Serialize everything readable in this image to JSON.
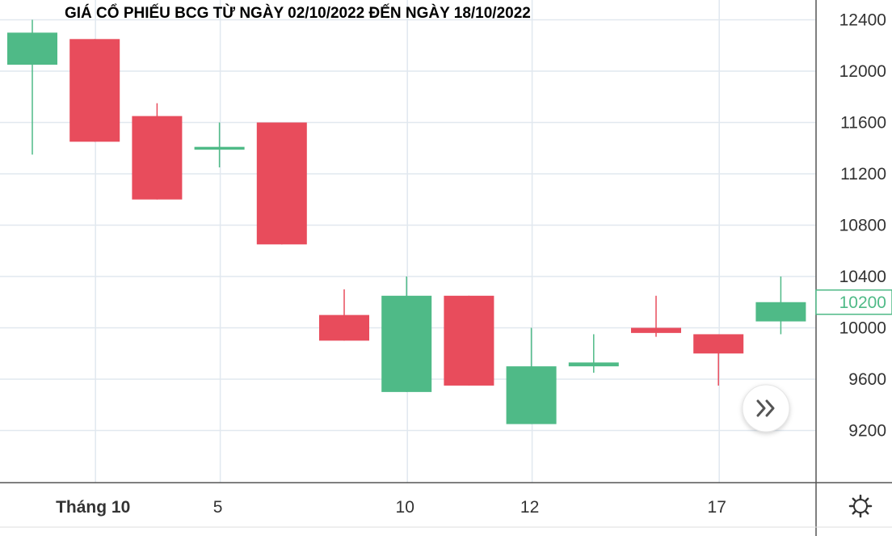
{
  "chart_data": {
    "type": "candlestick",
    "title": "GIÁ CỔ PHIẾU BCG TỪ NGÀY 02/10/2022 ĐẾN NGÀY 18/10/2022",
    "xlabel": "",
    "ylabel": "",
    "ylim": [
      8800,
      12500
    ],
    "y_ticks": [
      12400,
      12000,
      11600,
      11200,
      10800,
      10400,
      10000,
      9600,
      9200
    ],
    "x_tick_labels": [
      {
        "label": "Tháng 10",
        "index": 1,
        "bold": true
      },
      {
        "label": "5",
        "index": 3,
        "bold": false
      },
      {
        "label": "10",
        "index": 6,
        "bold": false
      },
      {
        "label": "12",
        "index": 8,
        "bold": false
      },
      {
        "label": "17",
        "index": 11,
        "bold": false
      }
    ],
    "grid": true,
    "current_price": "10200",
    "candles": [
      {
        "open": 12050,
        "close": 12300,
        "high": 12400,
        "low": 11350
      },
      {
        "open": 12250,
        "close": 11450,
        "high": 12250,
        "low": 11450
      },
      {
        "open": 11650,
        "close": 11000,
        "high": 11750,
        "low": 11000
      },
      {
        "open": 11390,
        "close": 11410,
        "high": 11600,
        "low": 11250
      },
      {
        "open": 11600,
        "close": 10650,
        "high": 11600,
        "low": 10650
      },
      {
        "open": 10100,
        "close": 9900,
        "high": 10300,
        "low": 9900
      },
      {
        "open": 9500,
        "close": 10250,
        "high": 10400,
        "low": 9500
      },
      {
        "open": 10250,
        "close": 9550,
        "high": 10250,
        "low": 9550
      },
      {
        "open": 9250,
        "close": 9700,
        "high": 10000,
        "low": 9250
      },
      {
        "open": 9700,
        "close": 9730,
        "high": 9950,
        "low": 9650
      },
      {
        "open": 10000,
        "close": 9960,
        "high": 10250,
        "low": 9930
      },
      {
        "open": 9950,
        "close": 9800,
        "high": 9950,
        "low": 9550
      },
      {
        "open": 10050,
        "close": 10200,
        "high": 10400,
        "low": 9950
      }
    ],
    "colors": {
      "up": "#4fba87",
      "down": "#e84c5c",
      "grid": "#e1e8ef",
      "axis": "#555555"
    }
  },
  "controls": {
    "scroll_icon": "double-chevron-right-icon",
    "settings_icon": "gear-icon"
  }
}
